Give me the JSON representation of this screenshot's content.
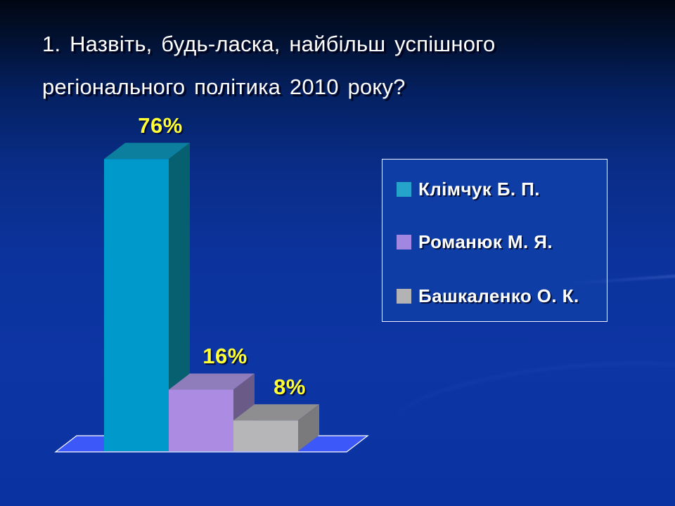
{
  "slide": {
    "title": {
      "line1": "1. Назвіть, будь-ласка, найбільш успішного",
      "line2": "регіонального політика 2010 року?"
    }
  },
  "chart_data": {
    "type": "bar",
    "projection": "3d",
    "title": "",
    "xlabel": "",
    "ylabel": "",
    "categories": [
      "Клімчук Б. П.",
      "Романюк М. Я.",
      "Башкаленко О. К."
    ],
    "values": [
      76,
      16,
      8
    ],
    "labels": [
      "76%",
      "16%",
      "8%"
    ],
    "value_suffix": "%",
    "ylim": [
      0,
      80
    ],
    "grid": false,
    "legend_position": "right",
    "label_color": "#ffff33",
    "floor_color": "#3c58f8",
    "floor_border_color": "#ffffff",
    "colors": [
      {
        "front": "#0099cb",
        "top": "#0d7f9e",
        "side": "#07606f"
      },
      {
        "front": "#ab8ce2",
        "top": "#8f7cba",
        "side": "#695a88"
      },
      {
        "front": "#b6b5b7",
        "top": "#8e8d90",
        "side": "#7a797c"
      }
    ]
  },
  "legend": {
    "items": [
      {
        "label": "Клімчук Б. П.",
        "color": "#25a3cb"
      },
      {
        "label": "Романюк М. Я.",
        "color": "#a287e2"
      },
      {
        "label": "Башкаленко О. К.",
        "color": "#b3b2b4"
      }
    ]
  }
}
